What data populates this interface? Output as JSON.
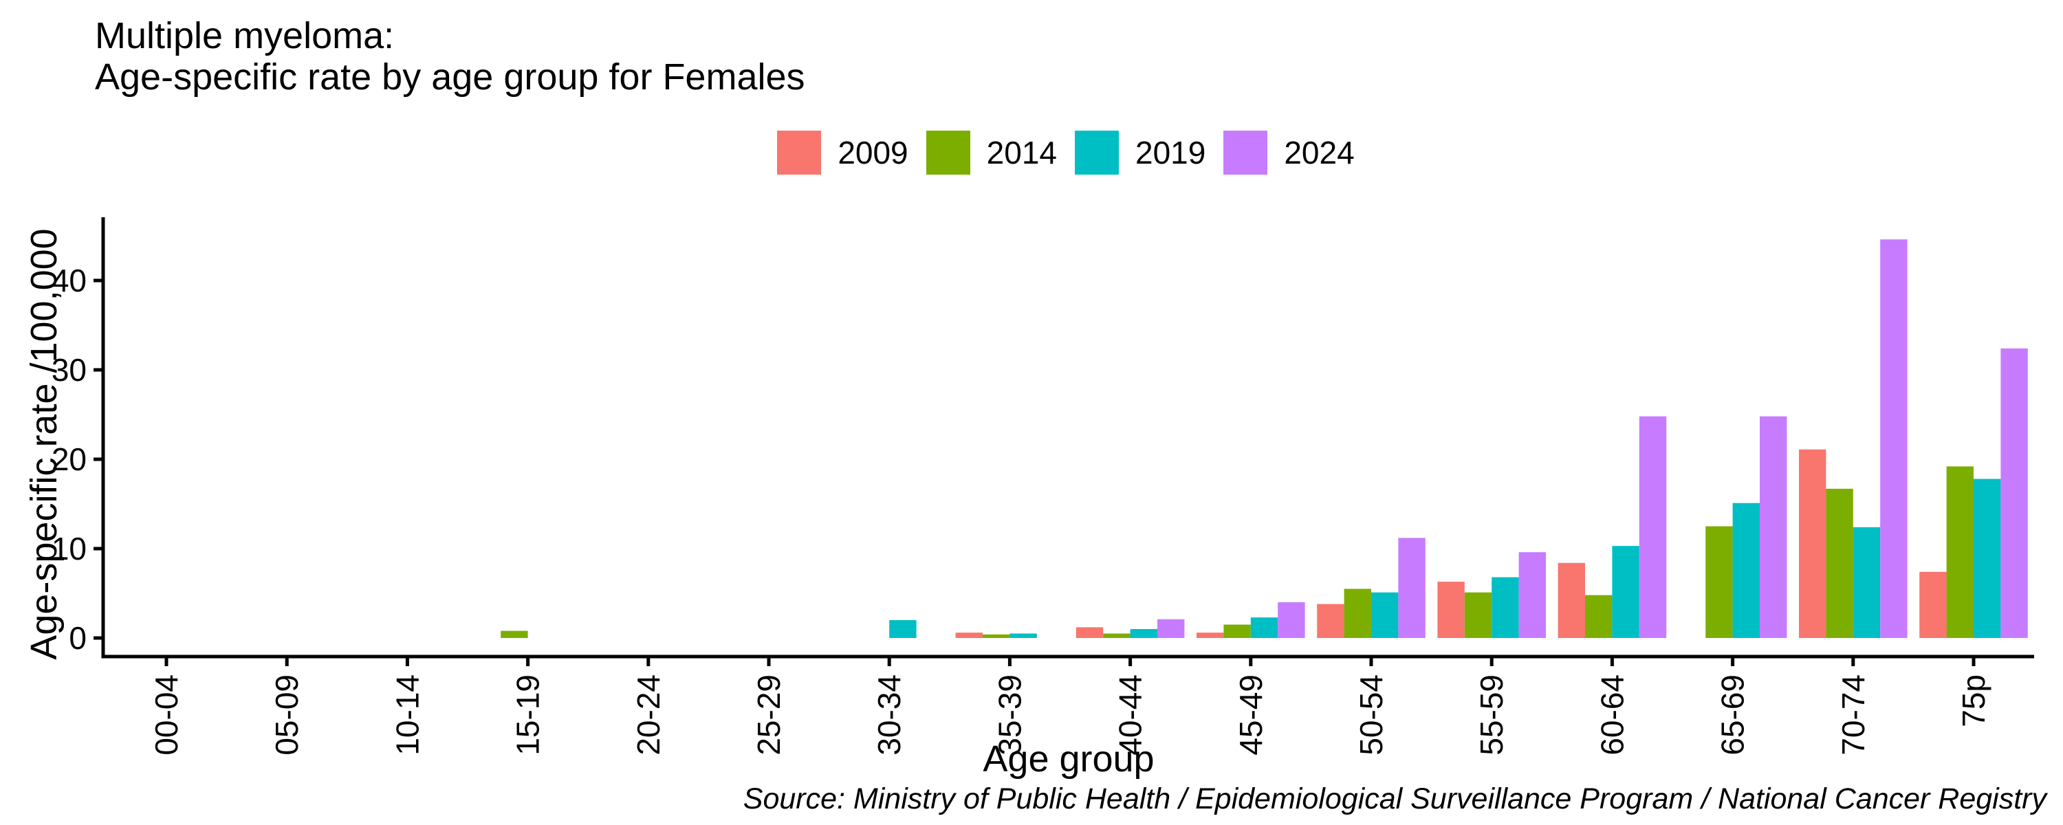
{
  "title": {
    "line1": "Multiple myeloma:",
    "line2": "Age-specific rate by age group for Females"
  },
  "source": {
    "text": "Source: Ministry of Public Health / Epidemiological Surveillance Program / National Cancer Registry"
  },
  "chart_data": {
    "type": "bar",
    "title": "Multiple myeloma: Age-specific rate by age group for Females",
    "xlabel": "Age group",
    "ylabel": "Age-specific rate /100,000",
    "categories": [
      "00-04",
      "05-09",
      "10-14",
      "15-19",
      "20-24",
      "25-29",
      "30-34",
      "35-39",
      "40-44",
      "45-49",
      "50-54",
      "55-59",
      "60-64",
      "65-69",
      "70-74",
      "75p"
    ],
    "series": [
      {
        "name": "2009",
        "color": "#F8766D",
        "values": [
          0,
          0,
          0,
          0,
          0,
          0,
          0,
          0.6,
          1.2,
          0.6,
          3.8,
          6.3,
          8.4,
          0,
          21.1,
          7.4
        ]
      },
      {
        "name": "2014",
        "color": "#7CAE00",
        "values": [
          0,
          0,
          0,
          0.8,
          0,
          0,
          0,
          0.4,
          0.5,
          1.5,
          5.5,
          5.1,
          4.8,
          12.5,
          16.7,
          19.2
        ]
      },
      {
        "name": "2019",
        "color": "#00BFC4",
        "values": [
          0,
          0,
          0,
          0,
          0,
          0,
          2.0,
          0.5,
          1.0,
          2.3,
          5.1,
          6.8,
          10.3,
          15.1,
          12.4,
          17.8
        ]
      },
      {
        "name": "2024",
        "color": "#C77CFF",
        "values": [
          0,
          0,
          0,
          0,
          0,
          0,
          0,
          0,
          2.1,
          4.0,
          11.2,
          9.6,
          24.8,
          24.8,
          44.6,
          32.4
        ]
      }
    ],
    "yticks": [
      0,
      10,
      20,
      30,
      40
    ],
    "ylim": [
      0,
      46.9
    ],
    "grid": "off",
    "legend_position": "top-center",
    "axis_color": "#000000",
    "text_color": "#000000"
  }
}
